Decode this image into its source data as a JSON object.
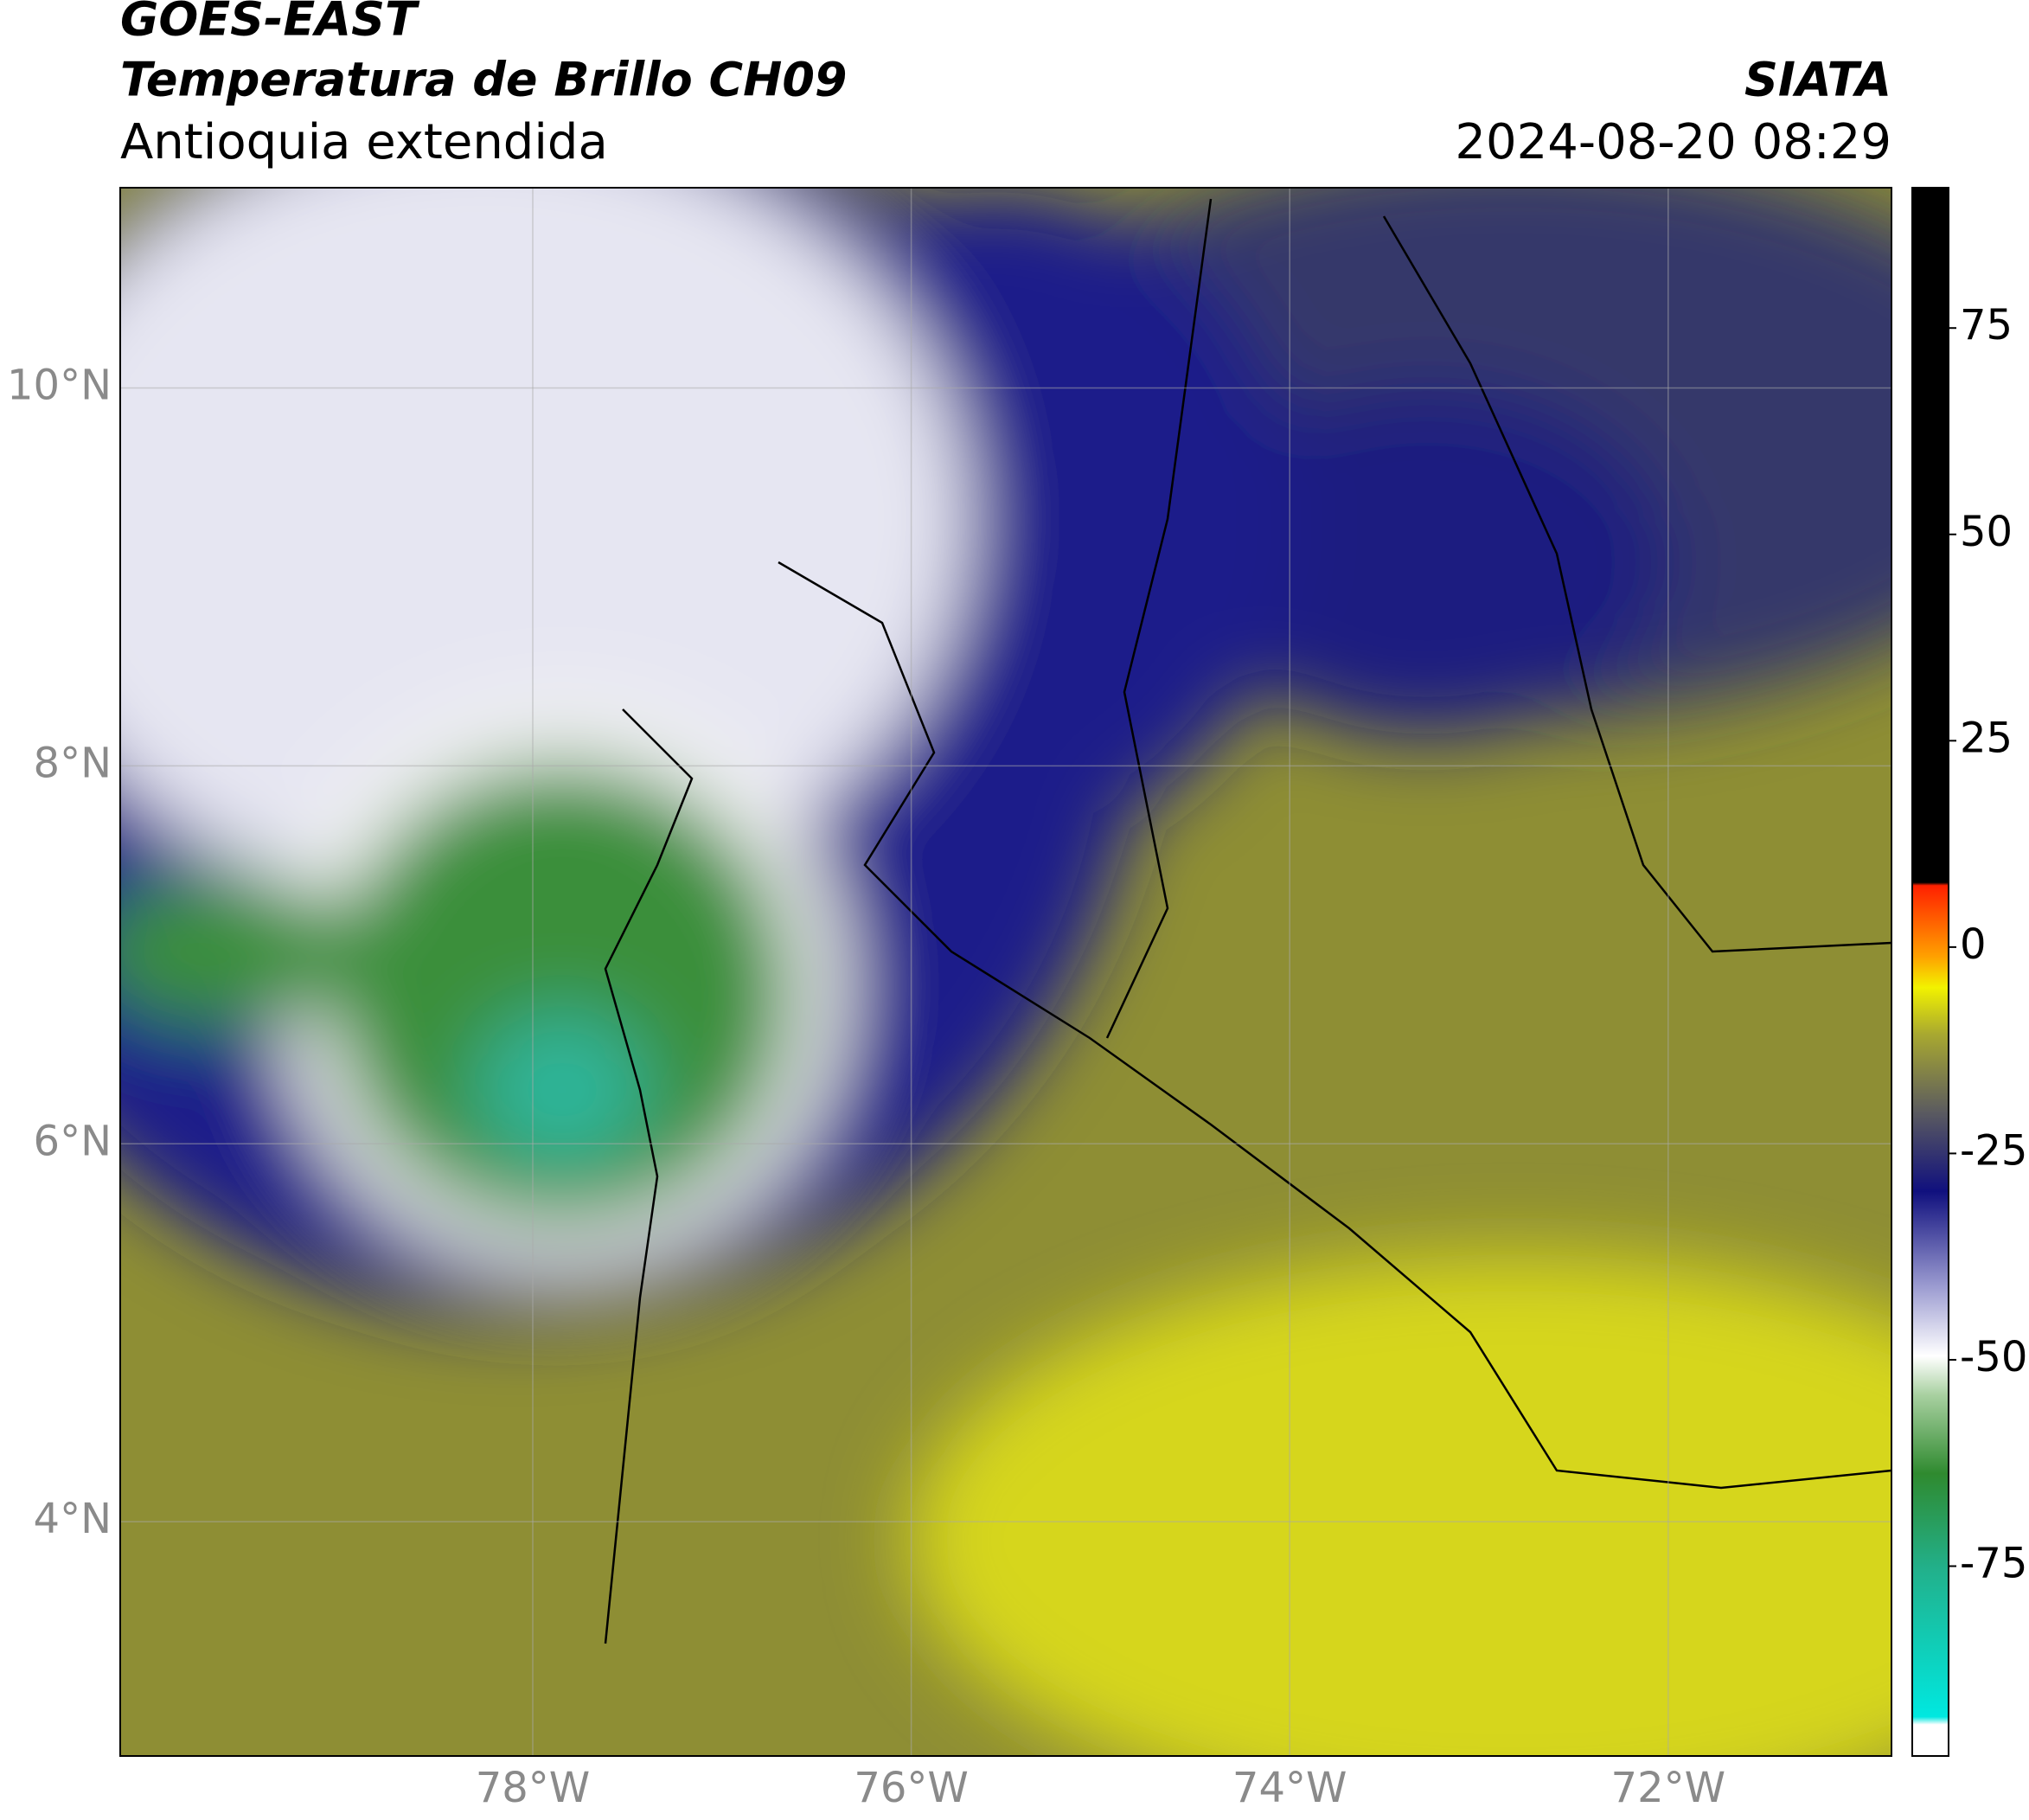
{
  "header": {
    "title": "GOES-EAST",
    "subtitle": "Temperatura de Brillo CH09",
    "region": "Antioquia extendida",
    "source": "SIATA",
    "datetime": "2024-08-20 08:29"
  },
  "map": {
    "xlim": [
      -80.18,
      -70.82
    ],
    "ylim": [
      2.76,
      11.06
    ],
    "xticks": [
      {
        "value": -78,
        "label": "78°W"
      },
      {
        "value": -76,
        "label": "76°W"
      },
      {
        "value": -74,
        "label": "74°W"
      },
      {
        "value": -72,
        "label": "72°W"
      }
    ],
    "yticks": [
      {
        "value": 10,
        "label": "10°N"
      },
      {
        "value": 8,
        "label": "8°N"
      },
      {
        "value": 6,
        "label": "6°N"
      },
      {
        "value": 4,
        "label": "4°N"
      }
    ],
    "grid": true
  },
  "colorbar": {
    "lim": [
      -98,
      92
    ],
    "ticks": [
      75,
      50,
      25,
      0,
      -25,
      -50,
      -75
    ]
  }
}
